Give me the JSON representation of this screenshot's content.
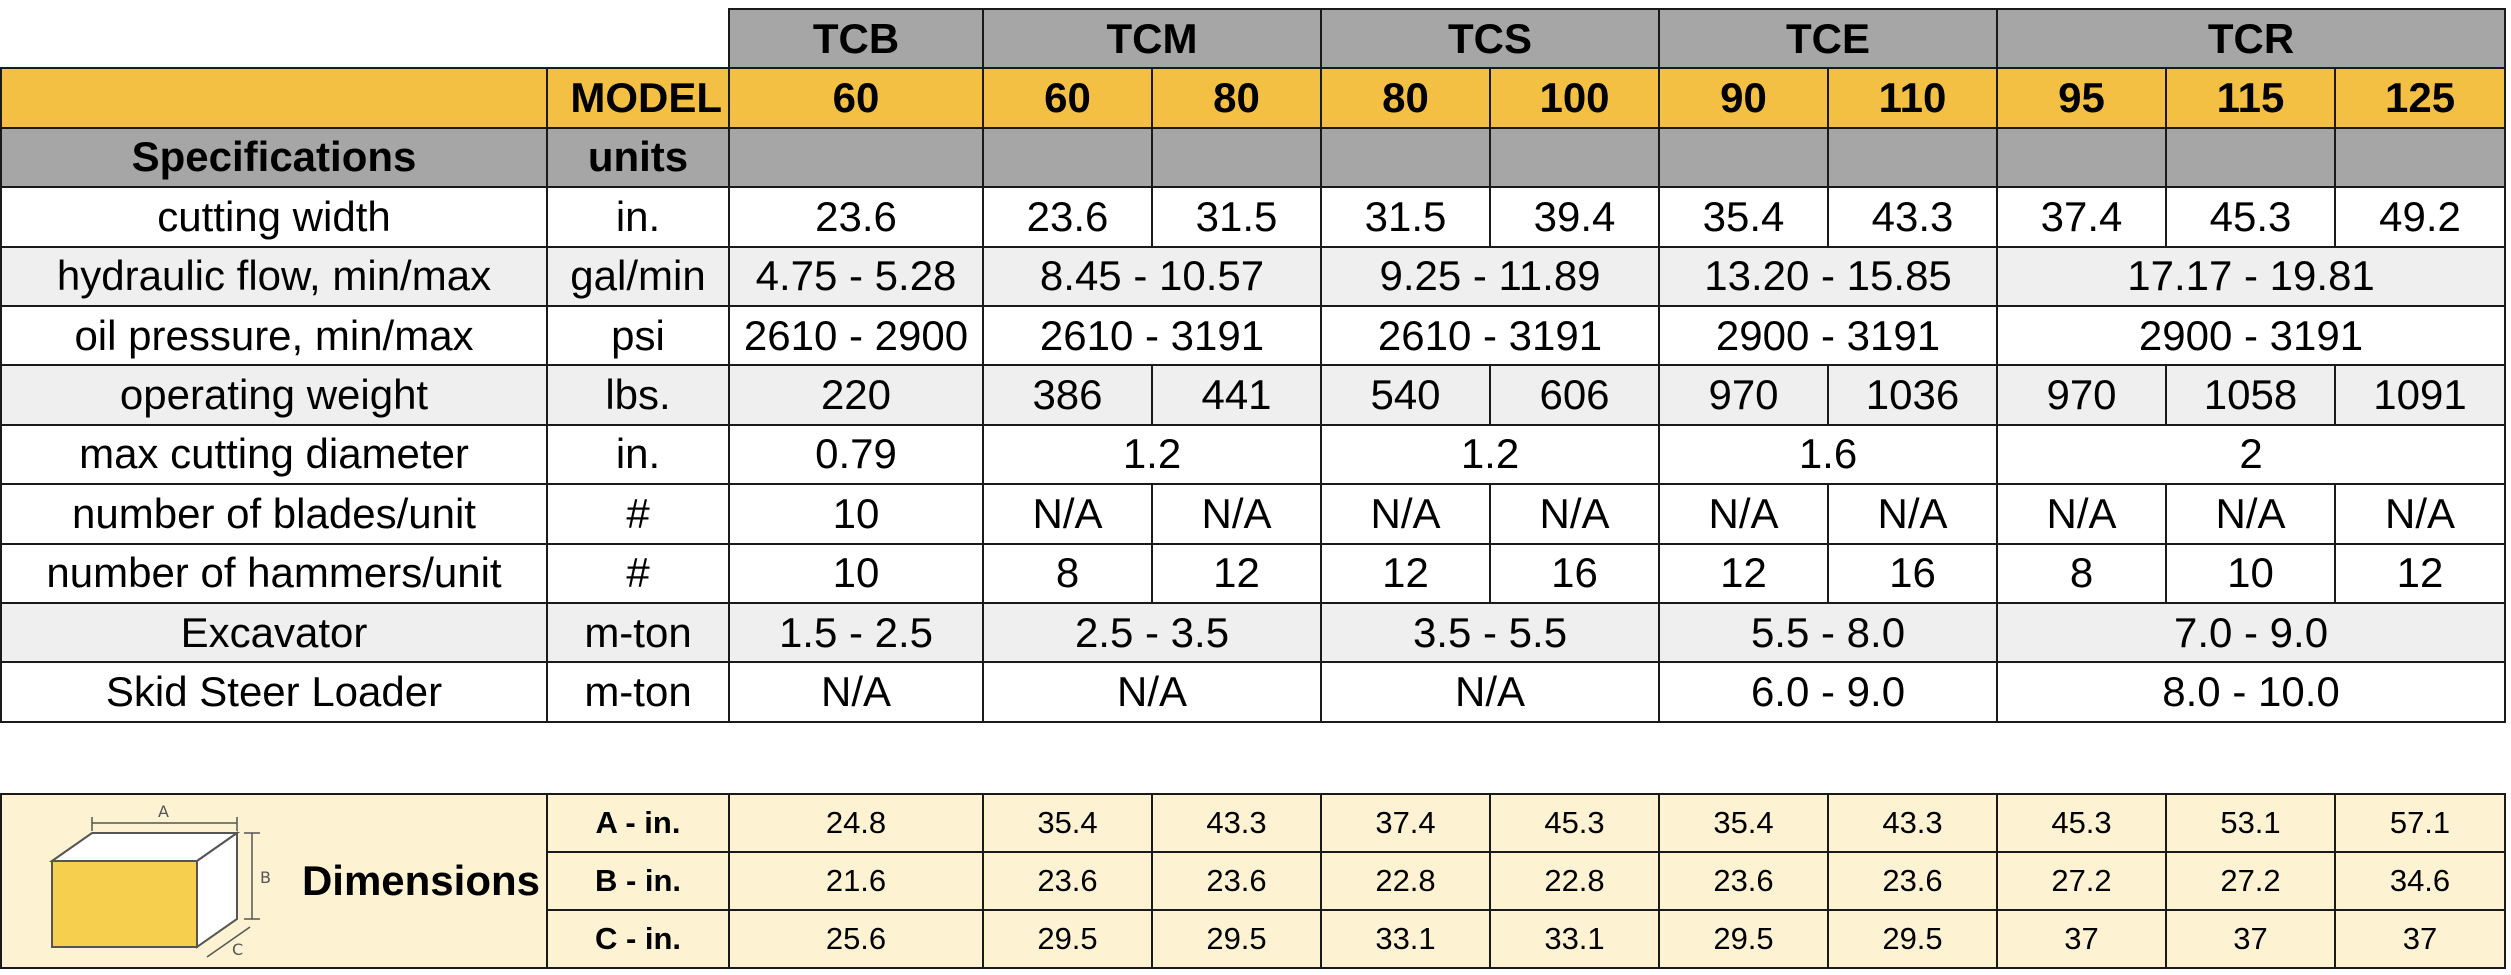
{
  "series_headers": [
    "TCB",
    "TCM",
    "TCS",
    "TCE",
    "TCR"
  ],
  "model_label": "MODEL",
  "models": [
    "60",
    "60",
    "80",
    "80",
    "100",
    "90",
    "110",
    "95",
    "115",
    "125"
  ],
  "header": {
    "specifications": "Specifications",
    "units": "units"
  },
  "rows": {
    "cutting_width": {
      "label": "cutting width",
      "unit": "in.",
      "values": [
        "23.6",
        "23.6",
        "31.5",
        "31.5",
        "39.4",
        "35.4",
        "43.3",
        "37.4",
        "45.3",
        "49.2"
      ]
    },
    "hydraulic_flow": {
      "label": "hydraulic flow, min/max",
      "unit": "gal/min",
      "values": [
        "4.75 - 5.28",
        "8.45 - 10.57",
        "9.25 - 11.89",
        "13.20 - 15.85",
        "17.17 - 19.81"
      ]
    },
    "oil_pressure": {
      "label": "oil pressure, min/max",
      "unit": "psi",
      "values": [
        "2610 - 2900",
        "2610 - 3191",
        "2610 - 3191",
        "2900 - 3191",
        "2900 - 3191"
      ]
    },
    "operating_weight": {
      "label": "operating weight",
      "unit": "lbs.",
      "values": [
        "220",
        "386",
        "441",
        "540",
        "606",
        "970",
        "1036",
        "970",
        "1058",
        "1091"
      ]
    },
    "max_cutting_diameter": {
      "label": "max cutting diameter",
      "unit": "in.",
      "values": [
        "0.79",
        "1.2",
        "1.2",
        "1.6",
        "2"
      ]
    },
    "blades": {
      "label": "number of blades/unit",
      "unit": "#",
      "values": [
        "10",
        "N/A",
        "N/A",
        "N/A",
        "N/A",
        "N/A",
        "N/A",
        "N/A",
        "N/A",
        "N/A"
      ]
    },
    "hammers": {
      "label": "number of hammers/unit",
      "unit": "#",
      "values": [
        "10",
        "8",
        "12",
        "12",
        "16",
        "12",
        "16",
        "8",
        "10",
        "12"
      ]
    },
    "excavator": {
      "label": "Excavator",
      "unit": "m-ton",
      "values": [
        "1.5 - 2.5",
        "2.5 - 3.5",
        "3.5 - 5.5",
        "5.5 - 8.0",
        "7.0 - 9.0"
      ]
    },
    "skid_steer": {
      "label": "Skid Steer Loader",
      "unit": "m-ton",
      "values": [
        "N/A",
        "N/A",
        "N/A",
        "6.0 - 9.0",
        "8.0 - 10.0"
      ]
    }
  },
  "dimensions": {
    "title": "Dimensions",
    "figure_letters": [
      "A",
      "B",
      "C"
    ],
    "rows": [
      {
        "unit": "A - in.",
        "values": [
          "24.8",
          "35.4",
          "43.3",
          "37.4",
          "45.3",
          "35.4",
          "43.3",
          "45.3",
          "53.1",
          "57.1"
        ]
      },
      {
        "unit": "B - in.",
        "values": [
          "21.6",
          "23.6",
          "23.6",
          "22.8",
          "22.8",
          "23.6",
          "23.6",
          "27.2",
          "27.2",
          "34.6"
        ]
      },
      {
        "unit": "C - in.",
        "values": [
          "25.6",
          "29.5",
          "29.5",
          "33.1",
          "33.1",
          "29.5",
          "29.5",
          "37",
          "37",
          "37"
        ]
      }
    ]
  },
  "colors": {
    "accent_yellow": "#f4c044",
    "header_gray": "#a6a6a6",
    "row_shade": "#efefef",
    "dimension_bg": "#fdf3d3",
    "box_yellow": "#f6cf4f"
  }
}
